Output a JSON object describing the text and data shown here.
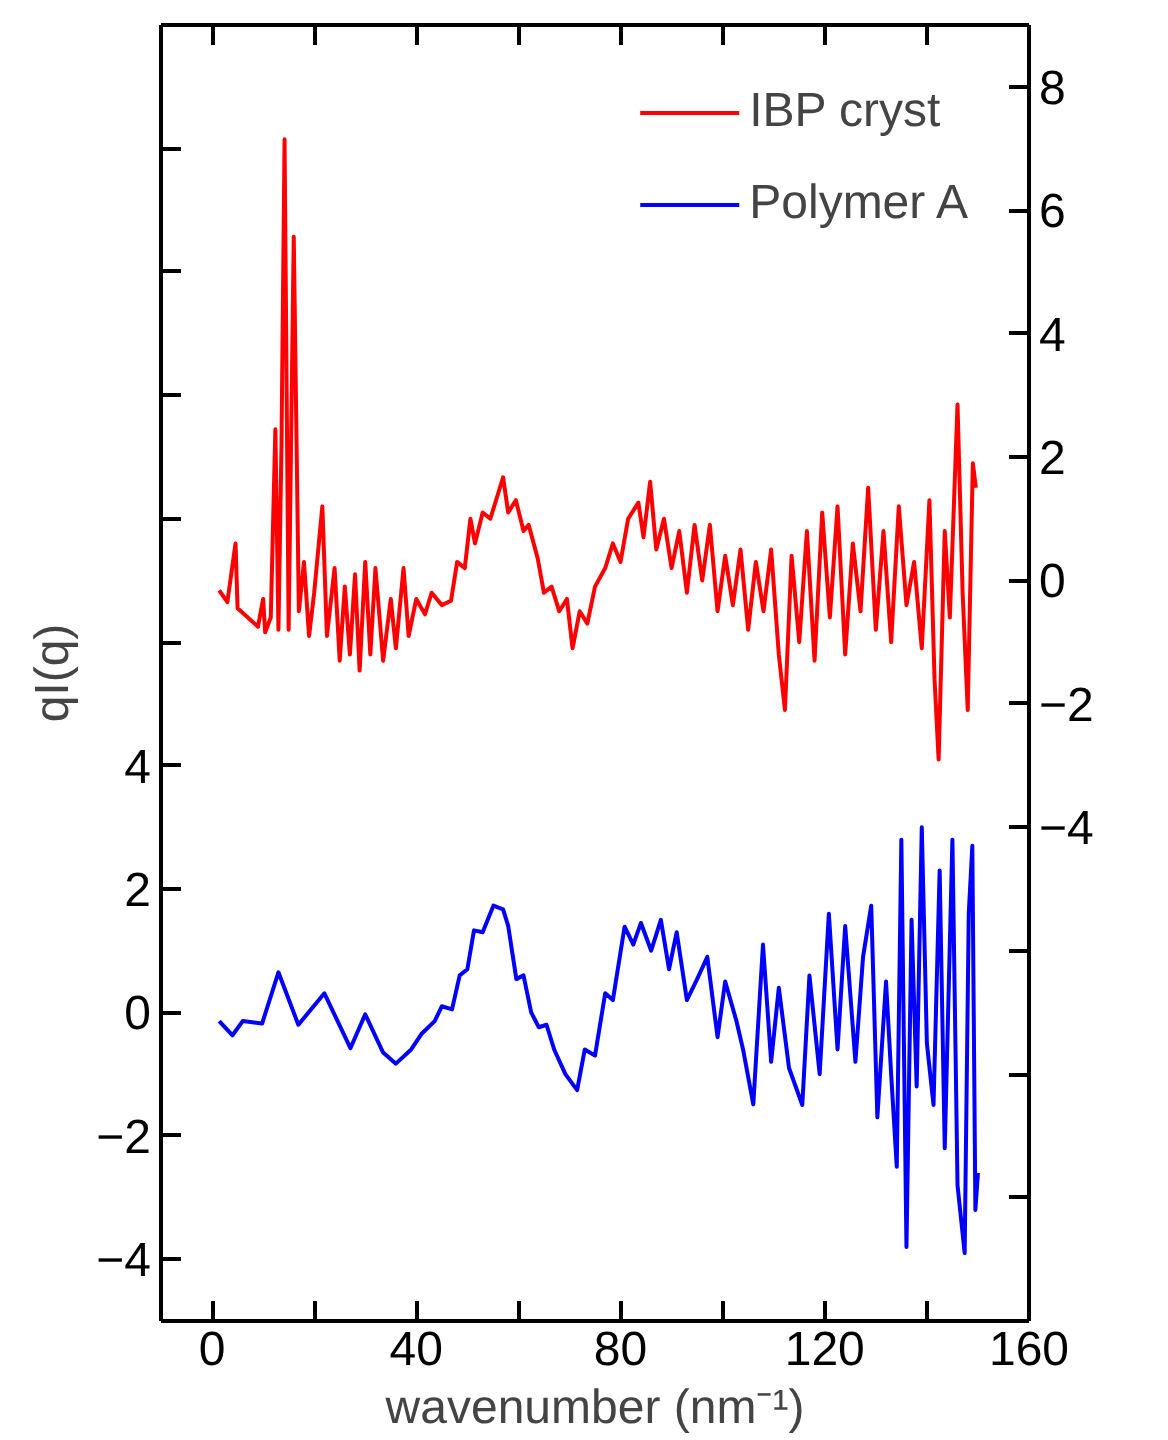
{
  "chart_data": {
    "type": "line",
    "xlabel": "wavenumber (nm⁻¹)",
    "ylabel": "qI(q)",
    "xlim": [
      -10,
      160
    ],
    "xticks": [
      0,
      {
        "value": 20,
        "label": null
      },
      40,
      {
        "value": 60,
        "label": null
      },
      80,
      {
        "value": 100,
        "label": null
      },
      120,
      {
        "value": 140,
        "label": null
      },
      160
    ],
    "ylim": [
      -5,
      16
    ],
    "yticks": [
      -4,
      -2,
      0,
      2,
      4,
      {
        "value": 6,
        "label": null
      },
      {
        "value": 8,
        "label": null
      },
      {
        "value": 10,
        "label": null
      },
      {
        "value": 12,
        "label": null
      },
      {
        "value": 14,
        "label": null
      }
    ],
    "y2lim": [
      -12,
      9
    ],
    "y2ticks": [
      {
        "value": -10,
        "label": null
      },
      {
        "value": -8,
        "label": null
      },
      {
        "value": -6,
        "label": null
      },
      -4,
      -2,
      0,
      2,
      4,
      6,
      8
    ],
    "grid": false,
    "legend": "top right",
    "series": [
      {
        "name": "IBP cryst",
        "color": "#ff0000",
        "axis": "y2",
        "x": [
          1.4,
          3,
          4.6,
          5,
          7,
          9,
          10,
          10.4,
          11.5,
          12.4,
          13,
          13.6,
          14.2,
          15,
          16,
          17,
          18,
          19,
          20,
          21.6,
          22.5,
          24,
          25,
          26,
          27,
          28,
          28.9,
          30,
          31,
          32,
          33.5,
          35,
          36,
          37.5,
          38.5,
          40,
          41.7,
          43,
          45,
          46.8,
          48,
          49.5,
          50.6,
          51.5,
          53,
          54.5,
          56,
          57,
          58,
          59.5,
          61,
          62,
          63.8,
          65,
          66.5,
          68,
          69.5,
          70.6,
          72,
          73.5,
          75,
          77,
          78.5,
          80,
          81.5,
          83.5,
          84.5,
          85.8,
          87,
          88.5,
          90,
          91.5,
          93,
          94.5,
          96,
          97.5,
          99,
          100.5,
          102,
          103.5,
          105,
          106.5,
          108,
          109.5,
          111,
          112.2,
          113.5,
          115,
          116.5,
          118,
          119.5,
          121,
          122.5,
          124,
          125.5,
          127,
          128.5,
          130,
          131.5,
          133,
          134.5,
          136,
          137.5,
          139,
          140.5,
          141.5,
          142.3,
          143.5,
          144.5,
          146,
          147,
          148,
          149,
          149.6
        ],
        "values": [
          -0.16,
          -0.35,
          0.6,
          -0.45,
          -0.6,
          -0.75,
          -0.3,
          -0.84,
          -0.6,
          2.45,
          -0.8,
          2.2,
          7.15,
          -0.8,
          5.57,
          -0.5,
          0.3,
          -0.9,
          -0.2,
          1.2,
          -0.9,
          0.2,
          -1.3,
          -0.1,
          -1.2,
          0.1,
          -1.46,
          0.3,
          -1.2,
          0.2,
          -1.3,
          -0.3,
          -1.1,
          0.2,
          -0.9,
          -0.3,
          -0.55,
          -0.2,
          -0.4,
          -0.33,
          0.3,
          0.2,
          1.0,
          0.6,
          1.1,
          1.0,
          1.4,
          1.67,
          1.1,
          1.3,
          0.8,
          0.9,
          0.35,
          -0.2,
          -0.1,
          -0.5,
          -0.3,
          -1.1,
          -0.5,
          -0.7,
          -0.1,
          0.2,
          0.6,
          0.3,
          1.0,
          1.26,
          0.7,
          1.6,
          0.5,
          1.0,
          0.2,
          0.8,
          -0.2,
          0.9,
          0.0,
          0.9,
          -0.5,
          0.4,
          -0.4,
          0.5,
          -0.8,
          0.3,
          -0.5,
          0.5,
          -1.2,
          -2.1,
          0.4,
          -1.0,
          0.8,
          -1.3,
          1.1,
          -0.6,
          1.2,
          -1.2,
          0.6,
          -0.5,
          1.5,
          -0.8,
          0.8,
          -1.0,
          1.2,
          -0.4,
          0.3,
          -1.1,
          1.3,
          -1.6,
          -2.9,
          0.8,
          -0.6,
          2.85,
          -0.2,
          -2.1,
          1.9,
          1.5
        ]
      },
      {
        "name": "Polymer A",
        "color": "#0000ff",
        "x": [
          1.4,
          4,
          6,
          9.8,
          13,
          16.9,
          22,
          27.1,
          30,
          33.5,
          36,
          39,
          41,
          43.6,
          45,
          47,
          48.5,
          50,
          51.3,
          53,
          55.1,
          57,
          58,
          59.6,
          61,
          62.5,
          64,
          65.5,
          67,
          69.2,
          71.5,
          73,
          75,
          77,
          78.5,
          80.8,
          82.5,
          84,
          86,
          87.9,
          89.5,
          91,
          93,
          95,
          97,
          99,
          100.5,
          102.7,
          104,
          106,
          107.9,
          109.5,
          111,
          113,
          115.6,
          117,
          119,
          120.8,
          122.5,
          124,
          126,
          127.5,
          129.1,
          130.3,
          132,
          133,
          134.1,
          135,
          136,
          137,
          138,
          139,
          140,
          141.3,
          142.5,
          143.5,
          145,
          146,
          147.4,
          148.2,
          148.9,
          149.5,
          150
        ],
        "values": [
          -0.14,
          -0.37,
          -0.14,
          -0.18,
          0.65,
          -0.2,
          0.31,
          -0.58,
          -0.03,
          -0.65,
          -0.83,
          -0.6,
          -0.35,
          -0.14,
          0.1,
          0.05,
          0.6,
          0.7,
          1.33,
          1.3,
          1.73,
          1.67,
          1.4,
          0.54,
          0.6,
          0.0,
          -0.24,
          -0.2,
          -0.6,
          -1.0,
          -1.26,
          -0.6,
          -0.7,
          0.31,
          0.2,
          1.39,
          1.1,
          1.45,
          1.0,
          1.5,
          0.7,
          1.3,
          0.2,
          0.54,
          0.9,
          -0.4,
          0.5,
          -0.14,
          -0.6,
          -1.49,
          1.1,
          -0.8,
          0.4,
          -0.9,
          -1.5,
          0.6,
          -1.0,
          1.6,
          -0.6,
          1.4,
          -0.8,
          0.9,
          1.73,
          -1.7,
          0.5,
          -1.0,
          -2.5,
          2.8,
          -3.8,
          1.5,
          -1.2,
          3.0,
          -0.5,
          -1.5,
          2.3,
          -2.2,
          2.8,
          -2.8,
          -3.9,
          1.6,
          2.7,
          -3.2,
          -2.6
        ]
      }
    ]
  }
}
